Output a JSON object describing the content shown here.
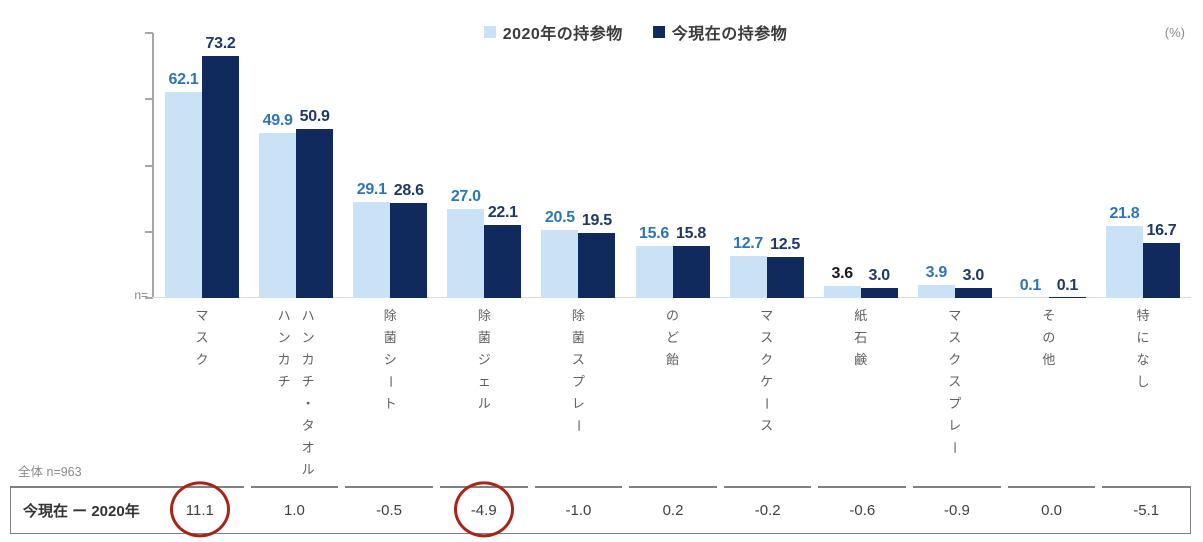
{
  "unit_label": "(%)",
  "axis_note": "n=",
  "base_note": "全体 n=963",
  "legend": {
    "items": [
      {
        "label": "2020年の持参物",
        "color": "#c9e2f5"
      },
      {
        "label": "今現在の持参物",
        "color": "#112a5e"
      }
    ]
  },
  "chart_data": {
    "type": "bar",
    "title": "",
    "unit": "%",
    "categories": [
      "マスク",
      "ハンカチ／ハンカチ・タオル",
      "除菌シート",
      "除菌ジェル",
      "除菌スプレー",
      "のど飴",
      "マスクケース",
      "紙石鹸",
      "マスクスプレー",
      "その他",
      "特になし"
    ],
    "category_lines": [
      [
        "マスク"
      ],
      [
        "ハンカチ",
        "ハンカチ・タオル"
      ],
      [
        "除菌シート"
      ],
      [
        "除菌ジェル"
      ],
      [
        "除菌スプレー"
      ],
      [
        "のど飴"
      ],
      [
        "マスクケース"
      ],
      [
        "紙石鹸"
      ],
      [
        "マスクスプレー"
      ],
      [
        "その他"
      ],
      [
        "特になし"
      ]
    ],
    "series": [
      {
        "name": "2020年の持参物",
        "color": "#c9e2f5",
        "label_color": "#2e75b6",
        "values": [
          62.1,
          49.9,
          29.1,
          27.0,
          20.5,
          15.6,
          12.7,
          3.6,
          3.9,
          0.1,
          21.8
        ]
      },
      {
        "name": "今現在の持参物",
        "color": "#112a5e",
        "label_color": "#1f3864",
        "values": [
          73.2,
          50.9,
          28.6,
          22.1,
          19.5,
          15.8,
          12.5,
          3.0,
          3.0,
          0.1,
          16.7
        ]
      }
    ],
    "label_color_overrides": [
      {
        "series": 0,
        "index": 7,
        "color": "#1a1a1a"
      }
    ],
    "ylim": [
      0,
      80
    ],
    "yticks": [
      0,
      20,
      40,
      60,
      80
    ],
    "y_tick_labels_shown": false,
    "grid": false,
    "legend_position": "top"
  },
  "diff_table": {
    "row_label": "今現在 ー 2020年",
    "values": [
      11.1,
      1.0,
      -0.5,
      -4.9,
      -1.0,
      0.2,
      -0.2,
      -0.6,
      -0.9,
      0.0,
      -5.1
    ],
    "circled_indexes": [
      0,
      3
    ],
    "circle_color": "#a8231a"
  }
}
